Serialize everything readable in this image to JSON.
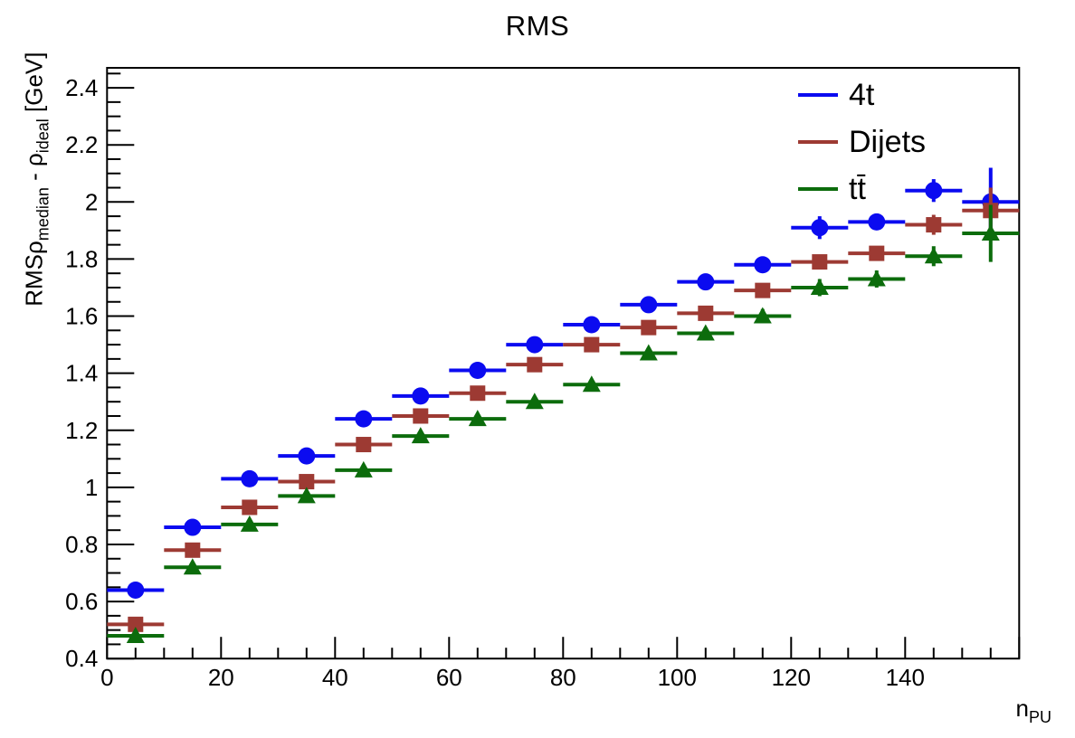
{
  "title": "RMS",
  "legend": {
    "entries": [
      {
        "label": "4t",
        "color": "#0b0bf0"
      },
      {
        "label": "Dijets",
        "color": "#9d3a33"
      },
      {
        "label": "tt̄",
        "color": "#0c6c0c"
      }
    ]
  },
  "axis_titles": {
    "y_rich": [
      {
        "text": "RMS",
        "sub": false
      },
      {
        "text": "ρ",
        "sub": false
      },
      {
        "text": "median",
        "sub": true
      },
      {
        "text": " - ",
        "sub": false
      },
      {
        "text": "ρ",
        "sub": false
      },
      {
        "text": "ideal",
        "sub": true
      },
      {
        "text": " [GeV]",
        "sub": false
      }
    ],
    "x_rich": [
      {
        "text": "n",
        "sub": false
      },
      {
        "text": "PU",
        "sub": true
      }
    ]
  },
  "chart_data": {
    "type": "scatter",
    "title": "RMS",
    "xlabel": "n_PU",
    "ylabel": "RMS rho_median - rho_ideal [GeV]",
    "xlim": [
      0,
      160
    ],
    "ylim": [
      0.4,
      2.47
    ],
    "grid": false,
    "legend_position": "top-right",
    "x_major_ticks": [
      0,
      20,
      40,
      60,
      80,
      100,
      120,
      140
    ],
    "x_minor_step": 5,
    "y_major_ticks": [
      0.4,
      0.6,
      0.8,
      1.0,
      1.2,
      1.4,
      1.6,
      1.8,
      2.0,
      2.2,
      2.4
    ],
    "y_minor_step": 0.05,
    "x": [
      5,
      15,
      25,
      35,
      45,
      55,
      65,
      75,
      85,
      95,
      105,
      115,
      125,
      135,
      145,
      155
    ],
    "xerr": 5,
    "series": [
      {
        "name": "4t",
        "marker": "circle",
        "color": "#0b0bf0",
        "y": [
          0.64,
          0.86,
          1.03,
          1.11,
          1.24,
          1.32,
          1.41,
          1.5,
          1.57,
          1.64,
          1.72,
          1.78,
          1.91,
          1.93,
          2.04,
          2.0
        ],
        "yerr": [
          0.01,
          0.01,
          0.01,
          0.012,
          0.012,
          0.015,
          0.02,
          0.015,
          0.015,
          0.02,
          0.02,
          0.02,
          0.04,
          0.025,
          0.04,
          0.12
        ]
      },
      {
        "name": "Dijets",
        "marker": "square",
        "color": "#9d3a33",
        "y": [
          0.52,
          0.78,
          0.93,
          1.02,
          1.15,
          1.25,
          1.33,
          1.43,
          1.5,
          1.56,
          1.61,
          1.69,
          1.79,
          1.82,
          1.92,
          1.97
        ],
        "yerr": [
          0.008,
          0.01,
          0.01,
          0.01,
          0.012,
          0.012,
          0.015,
          0.015,
          0.02,
          0.015,
          0.02,
          0.02,
          0.025,
          0.025,
          0.035,
          0.08
        ]
      },
      {
        "name": "tt̄",
        "marker": "triangle",
        "color": "#0c6c0c",
        "y": [
          0.48,
          0.72,
          0.87,
          0.97,
          1.06,
          1.18,
          1.24,
          1.3,
          1.36,
          1.47,
          1.54,
          1.6,
          1.7,
          1.73,
          1.81,
          1.89
        ],
        "yerr": [
          0.008,
          0.01,
          0.01,
          0.012,
          0.012,
          0.015,
          0.015,
          0.015,
          0.02,
          0.02,
          0.02,
          0.025,
          0.03,
          0.03,
          0.035,
          0.1
        ]
      }
    ]
  }
}
